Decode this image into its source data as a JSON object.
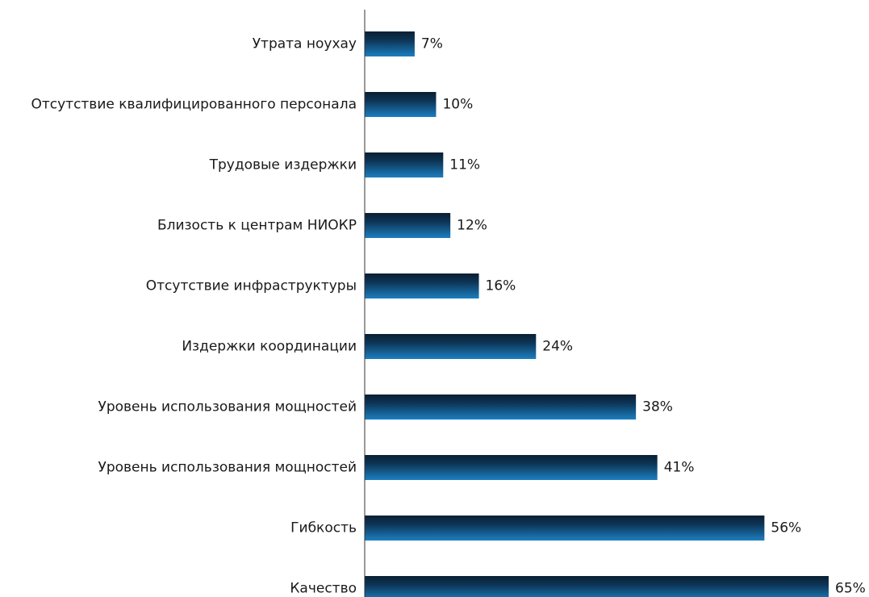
{
  "chart_data": {
    "type": "bar",
    "orientation": "horizontal",
    "title": "",
    "xlabel": "",
    "ylabel": "",
    "categories": [
      "Утрата ноухау",
      "Отсутствие квалифицированного персонала",
      "Трудовые издержки",
      "Близость к центрам НИОКР",
      "Отсутствие инфраструктуры",
      "Издержки координации",
      "Уровень использования мощностей",
      "Уровень использования мощностей",
      "Гибкость",
      "Качество"
    ],
    "values": [
      7,
      10,
      11,
      12,
      16,
      24,
      38,
      41,
      56,
      65
    ],
    "value_labels": [
      "7%",
      "10%",
      "11%",
      "12%",
      "16%",
      "24%",
      "38%",
      "41%",
      "56%",
      "65%"
    ],
    "unit": "%",
    "xlim": [
      0,
      65
    ],
    "grid": false,
    "legend": "none",
    "bar_color_dark": "#0a1f33",
    "bar_color_light": "#1c7fc0",
    "axis_color": "#333333"
  }
}
